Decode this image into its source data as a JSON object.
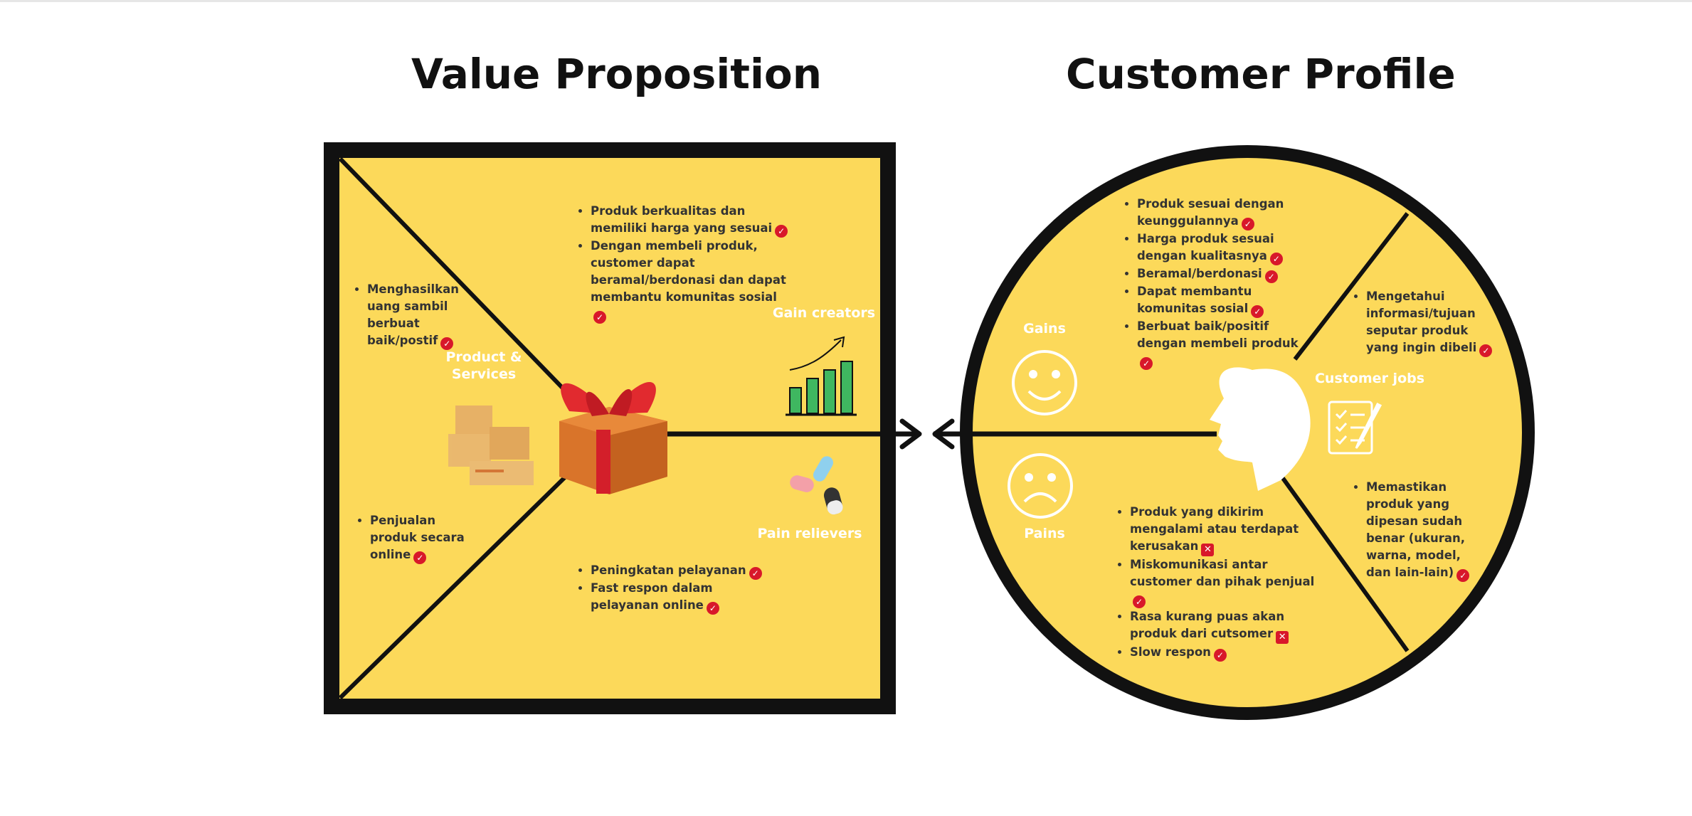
{
  "value_proposition": {
    "title": "Value Proposition",
    "label_products": "Product & Services",
    "label_gain_creators": "Gain creators",
    "label_pain_relievers": "Pain relievers",
    "products_items": [
      "Menghasilkan uang sambil berbuat baik/postif",
      "Penjualan produk secara online"
    ],
    "gain_creators_items": [
      "Produk berkualitas dan memiliki harga yang sesuai",
      "Dengan membeli produk, customer dapat beramal/berdonasi dan dapat membantu komunitas sosial"
    ],
    "pain_relievers_items": [
      "Peningkatan pelayanan",
      "Fast respon dalam pelayanan online"
    ]
  },
  "customer_profile": {
    "title": "Customer Profile",
    "label_gains": "Gains",
    "label_pains": "Pains",
    "label_customer_jobs": "Customer jobs",
    "gains_items": [
      "Produk sesuai dengan keunggulannya",
      "Harga produk sesuai dengan kualitasnya",
      "Beramal/berdonasi",
      "Dapat membantu komunitas sosial",
      "Berbuat baik/positif dengan membeli produk"
    ],
    "pains_items": [
      "Produk yang dikirim mengalami atau terdapat kerusakan",
      "Miskomunikasi antar customer dan pihak penjual",
      "Rasa kurang puas akan produk dari cutsomer",
      "Slow respon"
    ],
    "customer_jobs_items": [
      "Mengetahui informasi/tujuan seputar produk yang ingin dibeli",
      "Memastikan produk yang dipesan sudah benar (ukuran, warna, model, dan lain-lain)"
    ]
  },
  "colors": {
    "canvas_yellow": "#fcd95a",
    "outline": "#111111",
    "check_red": "#d8182a",
    "label_white": "#ffffff"
  },
  "icons": [
    "check-icon",
    "x-mark-icon",
    "gift-icon",
    "boxes-icon",
    "bar-chart-icon",
    "pills-icon",
    "smile-icon",
    "frown-icon",
    "head-icon",
    "checklist-icon",
    "arrow-icon"
  ]
}
